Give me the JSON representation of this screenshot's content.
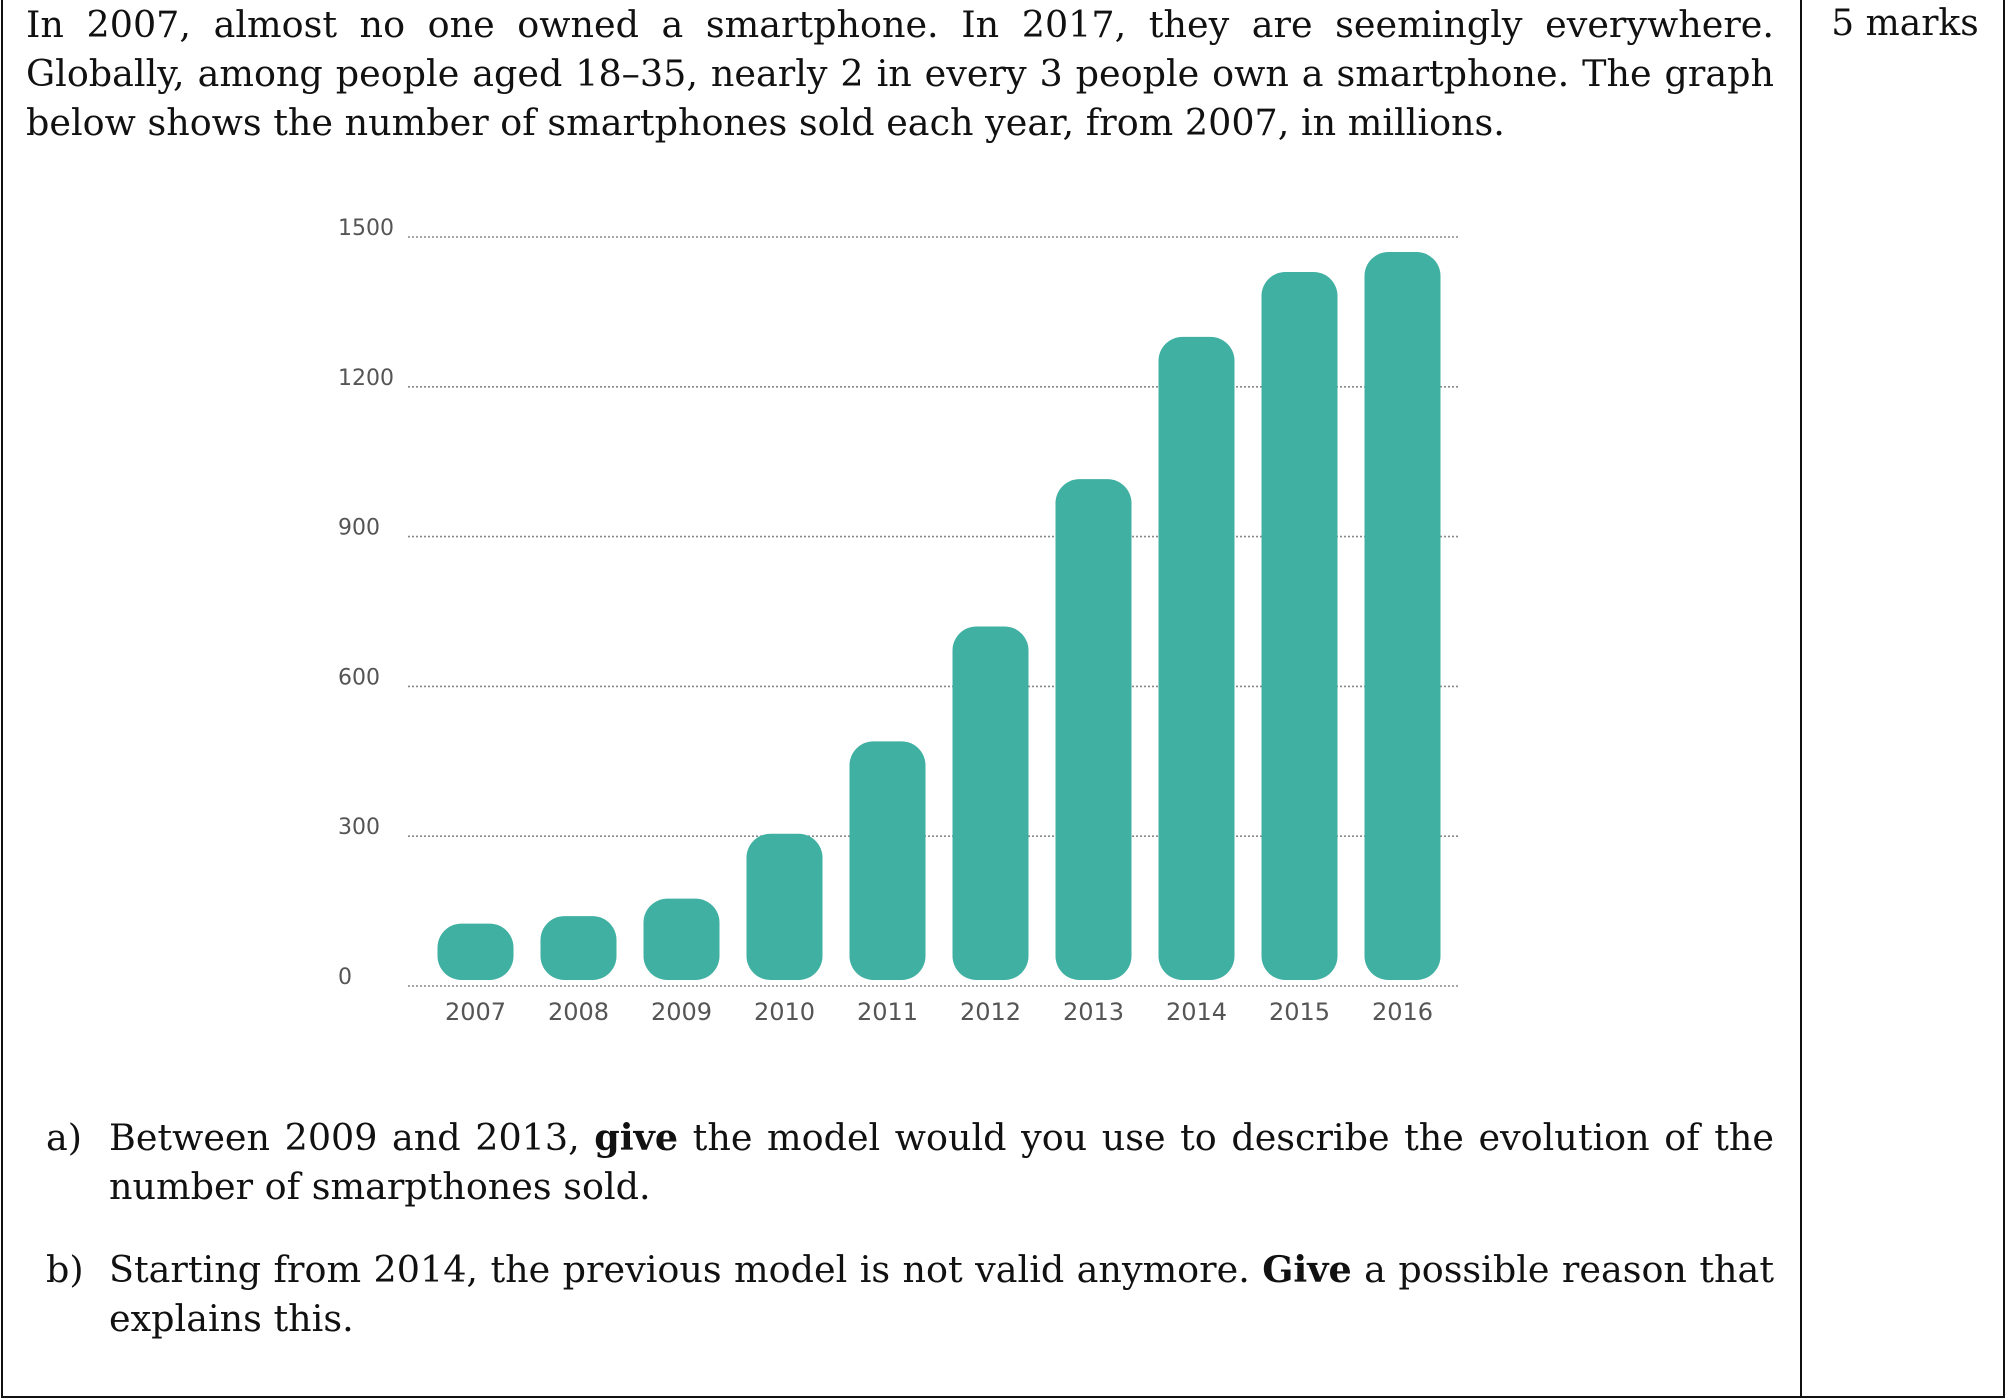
{
  "marks": "5 marks",
  "intro": "In 2007, almost no one owned a smartphone. In 2017, they are seemingly everywhere. Globally, among people aged 18–35, nearly 2 in every 3 people own a smartphone. The graph below shows the number of smartphones sold each year, from 2007, in millions.",
  "chart_data": {
    "type": "bar",
    "categories": [
      "2007",
      "2008",
      "2009",
      "2010",
      "2011",
      "2012",
      "2013",
      "2014",
      "2015",
      "2016"
    ],
    "values": [
      125,
      140,
      175,
      305,
      490,
      720,
      1015,
      1300,
      1430,
      1470
    ],
    "ylim": [
      0,
      1500
    ],
    "yticks": [
      "0",
      "300",
      "600",
      "900",
      "1200",
      "1500"
    ],
    "grid": true,
    "bar_color": "#3fb0a2"
  },
  "questions": [
    {
      "label": "a)",
      "before": "Between 2009 and 2013, ",
      "bold": "give",
      "after": " the model would you use to describe the evolution of the number of smarpthones sold."
    },
    {
      "label": "b)",
      "before": "Starting from 2014, the previous model is not valid anymore. ",
      "bold": "Give",
      "after": " a possible reason that explains this."
    }
  ]
}
